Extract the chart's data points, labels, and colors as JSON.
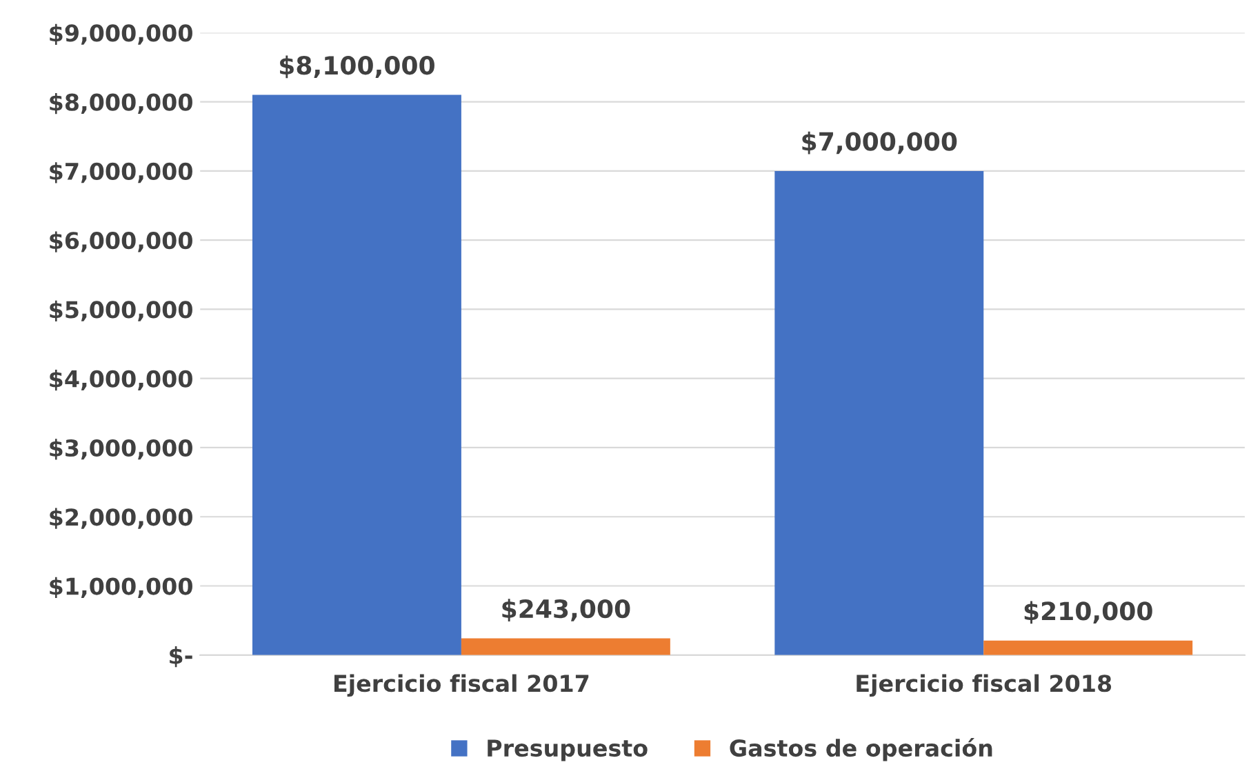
{
  "chart_data": {
    "type": "bar",
    "categories": [
      "Ejercicio fiscal 2017",
      "Ejercicio fiscal 2018"
    ],
    "series": [
      {
        "name": "Presupuesto",
        "color": "#4472c4",
        "values": [
          8100000,
          7000000
        ],
        "value_labels": [
          "$8,100,000",
          "$7,000,000"
        ]
      },
      {
        "name": "Gastos de operación",
        "color": "#ed7d31",
        "values": [
          243000,
          210000
        ],
        "value_labels": [
          "$243,000",
          "$210,000"
        ]
      }
    ],
    "ylim": [
      0,
      9000000
    ],
    "yticks": [
      {
        "value": 0,
        "label": "$-"
      },
      {
        "value": 1000000,
        "label": "$1,000,000"
      },
      {
        "value": 2000000,
        "label": "$2,000,000"
      },
      {
        "value": 3000000,
        "label": "$3,000,000"
      },
      {
        "value": 4000000,
        "label": "$4,000,000"
      },
      {
        "value": 5000000,
        "label": "$5,000,000"
      },
      {
        "value": 6000000,
        "label": "$6,000,000"
      },
      {
        "value": 7000000,
        "label": "$7,000,000"
      },
      {
        "value": 8000000,
        "label": "$8,000,000"
      },
      {
        "value": 9000000,
        "label": "$9,000,000"
      }
    ],
    "grid": "y",
    "legend": "bottom"
  }
}
